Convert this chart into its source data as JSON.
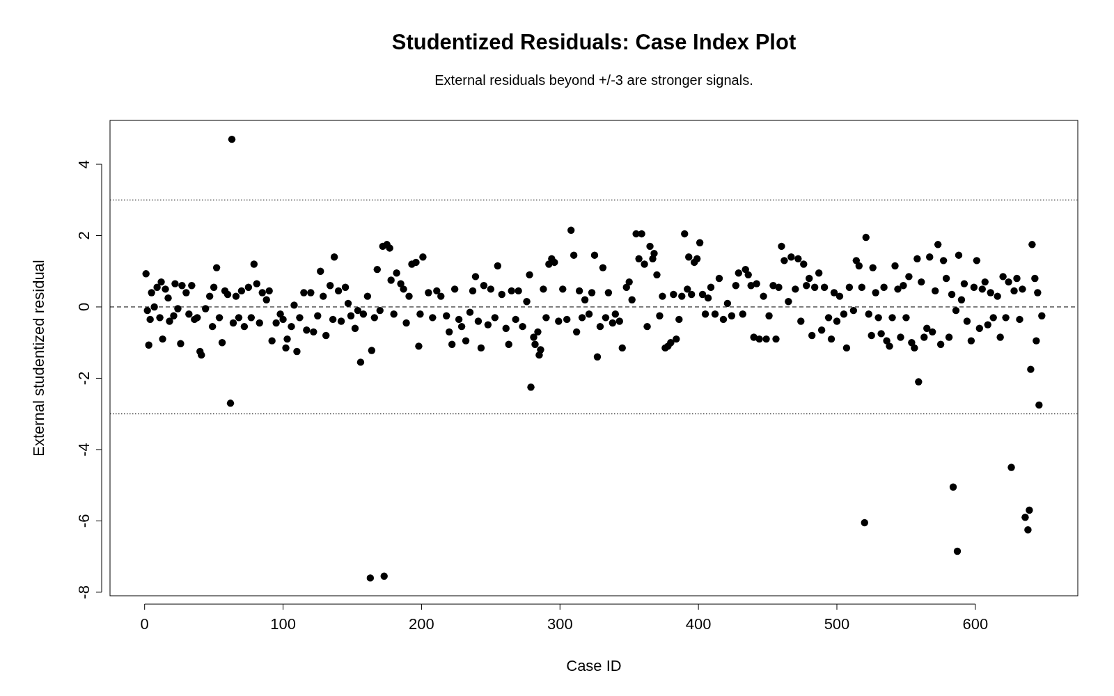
{
  "chart_data": {
    "type": "scatter",
    "title": "Studentized Residuals: Case Index Plot",
    "subtitle": "External residuals beyond +/-3 are stronger signals.",
    "xlabel": "Case ID",
    "ylabel": "External studentized residual",
    "x": [
      1,
      2,
      3,
      4,
      5,
      7,
      9,
      11,
      12,
      13,
      15,
      17,
      18,
      21,
      22,
      24,
      26,
      27,
      30,
      32,
      34,
      36,
      38,
      40,
      41,
      44,
      47,
      49,
      50,
      52,
      54,
      56,
      58,
      60,
      62,
      63,
      64,
      66,
      68,
      70,
      72,
      75,
      77,
      79,
      81,
      83,
      85,
      88,
      90,
      92,
      95,
      98,
      100,
      102,
      103,
      106,
      108,
      110,
      112,
      115,
      117,
      120,
      122,
      125,
      127,
      129,
      131,
      134,
      136,
      137,
      140,
      142,
      145,
      147,
      149,
      152,
      154,
      156,
      158,
      161,
      163,
      164,
      166,
      168,
      170,
      172,
      173,
      175,
      177,
      178,
      180,
      182,
      185,
      187,
      189,
      191,
      193,
      196,
      198,
      199,
      201,
      205,
      208,
      211,
      214,
      218,
      220,
      222,
      224,
      227,
      229,
      232,
      235,
      237,
      239,
      241,
      243,
      245,
      248,
      250,
      253,
      255,
      258,
      261,
      263,
      265,
      268,
      270,
      273,
      276,
      278,
      279,
      281,
      282,
      284,
      285,
      286,
      288,
      290,
      292,
      294,
      296,
      299,
      302,
      305,
      308,
      310,
      312,
      314,
      316,
      318,
      321,
      323,
      325,
      327,
      329,
      331,
      333,
      335,
      338,
      340,
      343,
      345,
      348,
      350,
      352,
      355,
      357,
      359,
      361,
      363,
      365,
      367,
      368,
      370,
      372,
      374,
      376,
      378,
      380,
      382,
      384,
      386,
      388,
      390,
      392,
      393,
      395,
      397,
      399,
      401,
      403,
      405,
      407,
      409,
      412,
      415,
      418,
      421,
      424,
      427,
      429,
      432,
      434,
      436,
      438,
      440,
      442,
      444,
      447,
      449,
      451,
      454,
      456,
      458,
      460,
      462,
      465,
      467,
      470,
      472,
      474,
      476,
      478,
      480,
      482,
      484,
      487,
      489,
      491,
      494,
      496,
      498,
      500,
      502,
      505,
      507,
      509,
      512,
      514,
      516,
      518,
      520,
      521,
      523,
      525,
      526,
      528,
      530,
      532,
      534,
      536,
      538,
      540,
      542,
      544,
      546,
      548,
      550,
      552,
      554,
      556,
      558,
      559,
      561,
      563,
      565,
      567,
      569,
      571,
      573,
      575,
      577,
      579,
      581,
      583,
      584,
      586,
      587,
      588,
      590,
      592,
      594,
      597,
      599,
      601,
      603,
      605,
      607,
      609,
      611,
      613,
      616,
      618,
      620,
      622,
      624,
      626,
      628,
      630,
      632,
      634,
      636,
      638,
      639,
      640,
      641,
      643,
      644,
      645,
      646,
      648
    ],
    "series": [
      {
        "color": "#000000",
        "values": [
          0.93,
          -0.1,
          -1.07,
          -0.35,
          0.4,
          0.0,
          0.55,
          -0.3,
          0.7,
          -0.9,
          0.5,
          0.25,
          -0.4,
          -0.25,
          0.65,
          -0.05,
          -1.03,
          0.6,
          0.4,
          -0.2,
          0.6,
          -0.35,
          -0.3,
          -1.25,
          -1.35,
          -0.05,
          0.3,
          -0.55,
          0.55,
          1.1,
          -0.3,
          -1.0,
          0.45,
          0.35,
          -2.7,
          4.7,
          -0.45,
          0.3,
          -0.3,
          0.45,
          -0.55,
          0.55,
          -0.3,
          1.2,
          0.65,
          -0.45,
          0.4,
          0.2,
          0.45,
          -0.95,
          -0.45,
          -0.2,
          -0.35,
          -1.15,
          -0.9,
          -0.55,
          0.05,
          -1.25,
          -0.3,
          0.4,
          -0.65,
          0.4,
          -0.7,
          -0.25,
          1.0,
          0.3,
          -0.8,
          0.6,
          -0.35,
          1.4,
          0.45,
          -0.4,
          0.55,
          0.1,
          -0.25,
          -0.6,
          -0.1,
          -1.55,
          -0.2,
          0.3,
          -7.6,
          -1.22,
          -0.3,
          1.05,
          -0.1,
          1.7,
          -7.55,
          1.75,
          1.65,
          0.75,
          -0.2,
          0.95,
          0.65,
          0.5,
          -0.45,
          0.3,
          1.2,
          1.25,
          -1.1,
          -0.2,
          1.4,
          0.4,
          -0.3,
          0.45,
          0.3,
          -0.25,
          -0.7,
          -1.05,
          0.5,
          -0.35,
          -0.55,
          -0.95,
          -0.15,
          0.45,
          0.85,
          -0.4,
          -1.15,
          0.6,
          -0.5,
          0.5,
          -0.3,
          1.15,
          0.35,
          -0.6,
          -1.05,
          0.45,
          -0.35,
          0.45,
          -0.55,
          0.15,
          0.9,
          -2.25,
          -0.85,
          -1.05,
          -0.7,
          -1.35,
          -1.2,
          0.5,
          -0.3,
          1.2,
          1.35,
          1.25,
          -0.4,
          0.5,
          -0.35,
          2.15,
          1.45,
          -0.7,
          0.45,
          -0.3,
          0.2,
          -0.2,
          0.4,
          1.45,
          -1.4,
          -0.55,
          1.1,
          -0.3,
          0.4,
          -0.45,
          -0.2,
          -0.4,
          -1.15,
          0.55,
          0.7,
          0.2,
          2.05,
          1.35,
          2.05,
          1.2,
          -0.55,
          1.7,
          1.35,
          1.5,
          0.9,
          -0.25,
          0.3,
          -1.15,
          -1.1,
          -1.0,
          0.35,
          -0.9,
          -0.35,
          0.3,
          2.05,
          0.5,
          1.4,
          0.35,
          1.25,
          1.35,
          1.8,
          0.35,
          -0.2,
          0.25,
          0.55,
          -0.2,
          0.8,
          -0.35,
          0.1,
          -0.25,
          0.6,
          0.95,
          -0.2,
          1.05,
          0.9,
          0.6,
          -0.85,
          0.65,
          -0.9,
          0.3,
          -0.9,
          -0.25,
          0.6,
          -0.9,
          0.55,
          1.7,
          1.3,
          0.15,
          1.4,
          0.5,
          1.35,
          -0.4,
          1.2,
          0.6,
          0.8,
          -0.8,
          0.55,
          0.95,
          -0.65,
          0.55,
          -0.3,
          -0.9,
          0.4,
          -0.4,
          0.3,
          -0.2,
          -1.15,
          0.55,
          -0.1,
          1.3,
          1.15,
          0.55,
          -6.05,
          1.95,
          -0.2,
          -0.8,
          1.1,
          0.4,
          -0.3,
          -0.75,
          0.55,
          -0.95,
          -1.1,
          -0.3,
          1.15,
          0.5,
          -0.85,
          0.6,
          -0.3,
          0.85,
          -1.0,
          -1.15,
          1.35,
          -2.1,
          0.7,
          -0.85,
          -0.6,
          1.4,
          -0.7,
          0.45,
          1.75,
          -1.05,
          1.3,
          0.8,
          -0.85,
          0.35,
          -5.05,
          -0.1,
          -6.85,
          1.45,
          0.2,
          0.65,
          -0.4,
          -0.95,
          0.55,
          1.3,
          -0.6,
          0.5,
          0.7,
          -0.5,
          0.4,
          -0.3,
          0.3,
          -0.85,
          0.85,
          -0.3,
          0.7,
          -4.5,
          0.45,
          0.8,
          -0.35,
          0.5,
          -5.9,
          -6.25,
          -5.7,
          -1.75,
          1.75,
          0.8,
          -0.95,
          0.4,
          -2.75,
          -0.25
        ]
      }
    ],
    "xlim": [
      -25,
      674
    ],
    "ylim": [
      -8.1,
      5.23
    ],
    "xticks": [
      0,
      100,
      200,
      300,
      400,
      500,
      600
    ],
    "yticks": [
      -8,
      -6,
      -4,
      -2,
      0,
      2,
      4
    ],
    "marker": "circle",
    "grid": false,
    "ref_lines": [
      {
        "axis": "y",
        "value": 3,
        "line_style": "dotted"
      },
      {
        "axis": "y",
        "value": -3,
        "line_style": "dotted"
      },
      {
        "axis": "y",
        "value": 0,
        "line_style": "dashed"
      }
    ]
  }
}
